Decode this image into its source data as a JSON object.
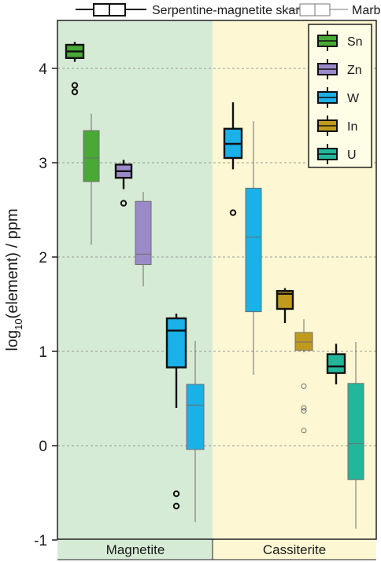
{
  "chart_data": {
    "type": "boxplot",
    "ylabel_prefix": "log",
    "ylabel_sub": "10",
    "ylabel_rest": "(element) / ppm",
    "ylim": [
      -1,
      4.5
    ],
    "yticks": [
      4,
      3,
      2,
      1,
      0,
      -1
    ],
    "grid": "horizontal dashed",
    "groups": [
      {
        "label": "Magnetite",
        "background": "#d6ebd6"
      },
      {
        "label": "Cassiterite",
        "background": "#fdf8d3"
      }
    ],
    "rock_types": [
      {
        "label": "Serpentine-magnetite skarn",
        "style": "thick black outline"
      },
      {
        "label": "Marble",
        "style": "thin gray outline"
      }
    ],
    "elements": [
      {
        "name": "Sn",
        "color": "#49a935"
      },
      {
        "name": "Zn",
        "color": "#9a8ac9"
      },
      {
        "name": "W",
        "color": "#1ab0e8"
      },
      {
        "name": "In",
        "color": "#c09a1c"
      },
      {
        "name": "U",
        "color": "#22b79b"
      }
    ],
    "legend_position": "top-right",
    "boxes": [
      {
        "group": "Magnetite",
        "element": "Sn",
        "rock": "Serpentine-magnetite skarn",
        "q1": 4.11,
        "median": 4.18,
        "q3": 4.25,
        "whisker_low": 4.07,
        "whisker_high": 4.28,
        "outliers": [
          3.82,
          3.75
        ]
      },
      {
        "group": "Magnetite",
        "element": "Sn",
        "rock": "Marble",
        "q1": 2.8,
        "median": 3.05,
        "q3": 3.34,
        "whisker_low": 2.13,
        "whisker_high": 3.52,
        "outliers": []
      },
      {
        "group": "Magnetite",
        "element": "Zn",
        "rock": "Serpentine-magnetite skarn",
        "q1": 2.84,
        "median": 2.91,
        "q3": 2.98,
        "whisker_low": 2.72,
        "whisker_high": 3.03,
        "outliers": [
          2.57
        ]
      },
      {
        "group": "Magnetite",
        "element": "Zn",
        "rock": "Marble",
        "q1": 1.92,
        "median": 2.03,
        "q3": 2.59,
        "whisker_low": 1.69,
        "whisker_high": 2.69,
        "outliers": []
      },
      {
        "group": "Magnetite",
        "element": "W",
        "rock": "Serpentine-magnetite skarn",
        "q1": 0.83,
        "median": 1.22,
        "q3": 1.35,
        "whisker_low": 0.4,
        "whisker_high": 1.4,
        "outliers": [
          -0.51,
          -0.64
        ]
      },
      {
        "group": "Magnetite",
        "element": "W",
        "rock": "Marble",
        "q1": -0.04,
        "median": 0.43,
        "q3": 0.65,
        "whisker_low": -0.81,
        "whisker_high": 1.11,
        "outliers": []
      },
      {
        "group": "Cassiterite",
        "element": "W",
        "rock": "Serpentine-magnetite skarn",
        "q1": 3.05,
        "median": 3.2,
        "q3": 3.36,
        "whisker_low": 2.93,
        "whisker_high": 3.64,
        "outliers": [
          2.47
        ]
      },
      {
        "group": "Cassiterite",
        "element": "W",
        "rock": "Marble",
        "q1": 1.42,
        "median": 2.21,
        "q3": 2.73,
        "whisker_low": 0.75,
        "whisker_high": 3.44,
        "outliers": []
      },
      {
        "group": "Cassiterite",
        "element": "In",
        "rock": "Serpentine-magnetite skarn",
        "q1": 1.45,
        "median": 1.61,
        "q3": 1.64,
        "whisker_low": 1.3,
        "whisker_high": 1.67,
        "outliers": []
      },
      {
        "group": "Cassiterite",
        "element": "In",
        "rock": "Marble",
        "q1": 1.01,
        "median": 1.1,
        "q3": 1.2,
        "whisker_low": 0.99,
        "whisker_high": 1.34,
        "outliers": [
          0.63,
          0.4,
          0.37,
          0.16
        ]
      },
      {
        "group": "Cassiterite",
        "element": "U",
        "rock": "Serpentine-magnetite skarn",
        "q1": 0.77,
        "median": 0.84,
        "q3": 0.97,
        "whisker_low": 0.65,
        "whisker_high": 1.08,
        "outliers": []
      },
      {
        "group": "Cassiterite",
        "element": "U",
        "rock": "Marble",
        "q1": -0.36,
        "median": 0.02,
        "q3": 0.66,
        "whisker_low": -0.88,
        "whisker_high": 1.1,
        "outliers": []
      }
    ]
  }
}
